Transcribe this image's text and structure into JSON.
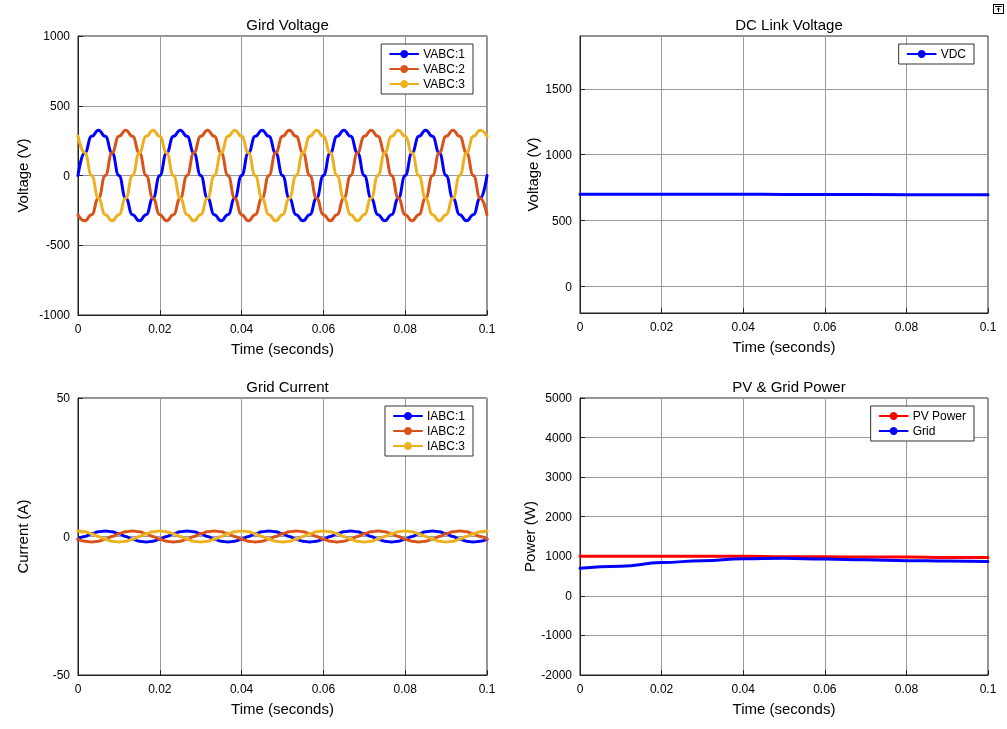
{
  "chart_data": [
    {
      "type": "line",
      "title": "Gird Voltage",
      "xlabel": "Time (seconds)",
      "ylabel": "Voltage (V)",
      "xlim": [
        0,
        0.1
      ],
      "xticks": [
        0,
        0.02,
        0.04,
        0.06,
        0.08,
        0.1
      ],
      "ylim": [
        -1000,
        1000
      ],
      "yticks": [
        -1000,
        -500,
        0,
        500,
        1000
      ],
      "grid": true,
      "legend": "top right",
      "marker": "none",
      "line_style": "solid",
      "x": [
        0,
        0.00167,
        0.00333,
        0.005,
        0.00667,
        0.00833,
        0.01,
        0.01167,
        0.01333,
        0.015,
        0.01667,
        0.01833,
        0.02,
        0.02167,
        0.02333,
        0.025,
        0.02667,
        0.02833,
        0.03,
        0.03167,
        0.03333,
        0.035,
        0.03667,
        0.03833,
        0.04,
        0.04167,
        0.04333,
        0.045,
        0.04667,
        0.04833,
        0.05,
        0.05167,
        0.05333,
        0.055,
        0.05667,
        0.05833,
        0.06,
        0.06167,
        0.06333,
        0.065,
        0.06667,
        0.06833,
        0.07,
        0.07167,
        0.07333,
        0.075,
        0.07667,
        0.07833,
        0.08,
        0.08167,
        0.08333,
        0.085,
        0.08667,
        0.08833,
        0.09,
        0.09167,
        0.09333,
        0.095,
        0.09667,
        0.09833,
        0.1
      ],
      "series": [
        {
          "name": "VABC:1",
          "color": "#0000ff",
          "values": [
            0,
            163,
            281,
            325,
            281,
            163,
            0,
            -163,
            -281,
            -325,
            -281,
            -163,
            0,
            163,
            281,
            325,
            281,
            163,
            0,
            -163,
            -281,
            -325,
            -281,
            -163,
            0,
            163,
            281,
            325,
            281,
            163,
            0,
            -163,
            -281,
            -325,
            -281,
            -163,
            0,
            163,
            281,
            325,
            281,
            163,
            0,
            -163,
            -281,
            -325,
            -281,
            -163,
            0,
            163,
            281,
            325,
            281,
            163,
            0,
            -163,
            -281,
            -325,
            -281,
            -163,
            0
          ]
        },
        {
          "name": "VABC:2",
          "color": "#d95319",
          "values": [
            -281,
            -325,
            -281,
            -163,
            0,
            163,
            281,
            325,
            281,
            163,
            0,
            -163,
            -281,
            -325,
            -281,
            -163,
            0,
            163,
            281,
            325,
            281,
            163,
            0,
            -163,
            -281,
            -325,
            -281,
            -163,
            0,
            163,
            281,
            325,
            281,
            163,
            0,
            -163,
            -281,
            -325,
            -281,
            -163,
            0,
            163,
            281,
            325,
            281,
            163,
            0,
            -163,
            -281,
            -325,
            -281,
            -163,
            0,
            163,
            281,
            325,
            281,
            163,
            0,
            -163,
            -281
          ]
        },
        {
          "name": "VABC:3",
          "color": "#edb120",
          "values": [
            281,
            163,
            0,
            -163,
            -281,
            -325,
            -281,
            -163,
            0,
            163,
            281,
            325,
            281,
            163,
            0,
            -163,
            -281,
            -325,
            -281,
            -163,
            0,
            163,
            281,
            325,
            281,
            163,
            0,
            -163,
            -281,
            -325,
            -281,
            -163,
            0,
            163,
            281,
            325,
            281,
            163,
            0,
            -163,
            -281,
            -325,
            -281,
            -163,
            0,
            163,
            281,
            325,
            281,
            163,
            0,
            -163,
            -281,
            -325,
            -281,
            -163,
            0,
            163,
            281,
            325,
            281
          ]
        }
      ]
    },
    {
      "type": "line",
      "title": "DC Link Voltage",
      "xlabel": "Time (seconds)",
      "ylabel": "Voltage (V)",
      "xlim": [
        0,
        0.1
      ],
      "xticks": [
        0,
        0.02,
        0.04,
        0.06,
        0.08,
        0.1
      ],
      "ylim": [
        -200,
        1900
      ],
      "yticks": [
        0,
        500,
        1000,
        1500
      ],
      "grid": true,
      "legend": "top right",
      "marker": "none",
      "line_style": "solid",
      "x": [
        0,
        0.02,
        0.04,
        0.06,
        0.08,
        0.1
      ],
      "series": [
        {
          "name": "VDC",
          "color": "#0000ff",
          "values": [
            700,
            700,
            700,
            698,
            697,
            697
          ]
        }
      ]
    },
    {
      "type": "line",
      "title": "Grid Current",
      "xlabel": "Time (seconds)",
      "ylabel": "Current (A)",
      "xlim": [
        0,
        0.1
      ],
      "xticks": [
        0,
        0.02,
        0.04,
        0.06,
        0.08,
        0.1
      ],
      "ylim": [
        -50,
        50
      ],
      "yticks": [
        -50,
        0,
        50
      ],
      "grid": true,
      "legend": "top right",
      "marker": "none",
      "line_style": "solid",
      "x": [
        0,
        0.00167,
        0.00333,
        0.005,
        0.00667,
        0.00833,
        0.01,
        0.01167,
        0.01333,
        0.015,
        0.01667,
        0.01833,
        0.02,
        0.02167,
        0.02333,
        0.025,
        0.02667,
        0.02833,
        0.03,
        0.03167,
        0.03333,
        0.035,
        0.03667,
        0.03833,
        0.04,
        0.04167,
        0.04333,
        0.045,
        0.04667,
        0.04833,
        0.05,
        0.05167,
        0.05333,
        0.055,
        0.05667,
        0.05833,
        0.06,
        0.06167,
        0.06333,
        0.065,
        0.06667,
        0.06833,
        0.07,
        0.07167,
        0.07333,
        0.075,
        0.07667,
        0.07833,
        0.08,
        0.08167,
        0.08333,
        0.085,
        0.08667,
        0.08833,
        0.09,
        0.09167,
        0.09333,
        0.095,
        0.09667,
        0.09833,
        0.1
      ],
      "series": [
        {
          "name": "IABC:1",
          "color": "#0000ff",
          "values": [
            -1,
            0,
            1,
            1.7,
            2,
            1.7,
            1,
            0,
            -1,
            -1.7,
            -2,
            -1.7,
            -1,
            0,
            1,
            1.7,
            2,
            1.7,
            1,
            0,
            -1,
            -1.7,
            -2,
            -1.7,
            -1,
            0,
            1,
            1.7,
            2,
            1.7,
            1,
            0,
            -1,
            -1.7,
            -2,
            -1.7,
            -1,
            0,
            1,
            1.7,
            2,
            1.7,
            1,
            0,
            -1,
            -1.7,
            -2,
            -1.7,
            -1,
            0,
            1,
            1.7,
            2,
            1.7,
            1,
            0,
            -1,
            -1.7,
            -2,
            -1.7,
            -1
          ]
        },
        {
          "name": "IABC:2",
          "color": "#d95319",
          "values": [
            -1,
            -1.7,
            -2,
            -1.7,
            -1,
            0,
            1,
            1.7,
            2,
            1.7,
            1,
            0,
            -1,
            -1.7,
            -2,
            -1.7,
            -1,
            0,
            1,
            1.7,
            2,
            1.7,
            1,
            0,
            -1,
            -1.7,
            -2,
            -1.7,
            -1,
            0,
            1,
            1.7,
            2,
            1.7,
            1,
            0,
            -1,
            -1.7,
            -2,
            -1.7,
            -1,
            0,
            1,
            1.7,
            2,
            1.7,
            1,
            0,
            -1,
            -1.7,
            -2,
            -1.7,
            -1,
            0,
            1,
            1.7,
            2,
            1.7,
            1,
            0,
            -1
          ]
        },
        {
          "name": "IABC:3",
          "color": "#edb120",
          "values": [
            2,
            1.7,
            1,
            0,
            -1,
            -1.7,
            -2,
            -1.7,
            -1,
            0,
            1,
            1.7,
            2,
            1.7,
            1,
            0,
            -1,
            -1.7,
            -2,
            -1.7,
            -1,
            0,
            1,
            1.7,
            2,
            1.7,
            1,
            0,
            -1,
            -1.7,
            -2,
            -1.7,
            -1,
            0,
            1,
            1.7,
            2,
            1.7,
            1,
            0,
            -1,
            -1.7,
            -2,
            -1.7,
            -1,
            0,
            1,
            1.7,
            2,
            1.7,
            1,
            0,
            -1,
            -1.7,
            -2,
            -1.7,
            -1,
            0,
            1,
            1.7,
            2
          ]
        }
      ]
    },
    {
      "type": "line",
      "title": "PV & Grid Power",
      "xlabel": "Time (seconds)",
      "ylabel": "Power (W)",
      "xlim": [
        0,
        0.1
      ],
      "xticks": [
        0,
        0.02,
        0.04,
        0.06,
        0.08,
        0.1
      ],
      "ylim": [
        -2000,
        5000
      ],
      "yticks": [
        -2000,
        -1000,
        0,
        1000,
        2000,
        3000,
        4000,
        5000
      ],
      "grid": true,
      "legend": "top right",
      "marker": "none",
      "line_style": "solid",
      "x": [
        0,
        0.01,
        0.02,
        0.03,
        0.04,
        0.05,
        0.06,
        0.07,
        0.08,
        0.09,
        0.1
      ],
      "series": [
        {
          "name": "PV Power",
          "color": "#ff0000",
          "values": [
            1000,
            1000,
            1000,
            1000,
            1000,
            990,
            990,
            980,
            980,
            970,
            970
          ]
        },
        {
          "name": "Grid",
          "color": "#0000ff",
          "values": [
            700,
            750,
            840,
            890,
            940,
            950,
            930,
            910,
            890,
            880,
            870
          ]
        }
      ]
    }
  ]
}
